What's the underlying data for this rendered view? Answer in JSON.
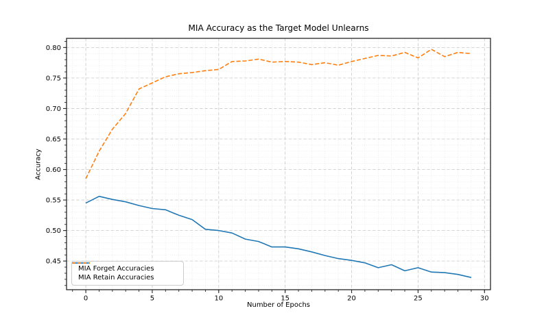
{
  "chart_data": {
    "type": "line",
    "title": "MIA Accuracy as the Target Model Unlearns",
    "xlabel": "Number of Epochs",
    "ylabel": "Accuracy",
    "x": [
      0,
      1,
      2,
      3,
      4,
      5,
      6,
      7,
      8,
      9,
      10,
      11,
      12,
      13,
      14,
      15,
      16,
      17,
      18,
      19,
      20,
      21,
      22,
      23,
      24,
      25,
      26,
      27,
      28,
      29
    ],
    "series": [
      {
        "name": "MIA Forget Accuracies",
        "color": "#1f77b4",
        "style": "solid",
        "values": [
          0.545,
          0.556,
          0.551,
          0.547,
          0.541,
          0.536,
          0.534,
          0.525,
          0.518,
          0.502,
          0.5,
          0.496,
          0.486,
          0.482,
          0.473,
          0.473,
          0.47,
          0.465,
          0.459,
          0.454,
          0.451,
          0.447,
          0.439,
          0.444,
          0.434,
          0.439,
          0.432,
          0.431,
          0.428,
          0.423
        ]
      },
      {
        "name": "MIA Retain Accuracies",
        "color": "#ff7f0e",
        "style": "dashed",
        "values": [
          0.585,
          0.63,
          0.666,
          0.692,
          0.732,
          0.742,
          0.752,
          0.757,
          0.759,
          0.762,
          0.764,
          0.777,
          0.778,
          0.781,
          0.776,
          0.777,
          0.776,
          0.772,
          0.775,
          0.771,
          0.777,
          0.782,
          0.787,
          0.786,
          0.792,
          0.783,
          0.797,
          0.785,
          0.792,
          0.79
        ]
      }
    ],
    "xlim": [
      -1.45,
      30.45
    ],
    "ylim": [
      0.403,
      0.815
    ],
    "x_ticks": [
      0,
      5,
      10,
      15,
      20,
      25,
      30
    ],
    "y_ticks": [
      0.45,
      0.5,
      0.55,
      0.6,
      0.65,
      0.7,
      0.75,
      0.8
    ],
    "x_minor_step": 1,
    "y_minor_step": 0.01,
    "grid": true,
    "legend_position": "lower left",
    "colors": {
      "frame": "#262626",
      "tick_text": "#000000",
      "grid_major": "#c9c9c9",
      "grid_minor": "#e4e4e4"
    }
  }
}
